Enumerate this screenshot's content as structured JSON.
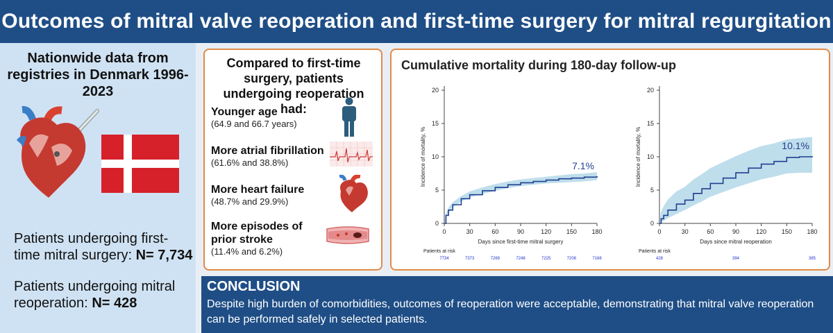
{
  "title": "Outcomes of mitral valve reoperation and first-time surgery for mitral regurgitation",
  "left": {
    "nationwide": "Nationwide data from registries in Denmark 1996-2023",
    "first_time_label": "Patients undergoing first-time mitral surgery:",
    "first_time_n": "N= 7,734",
    "reop_label": "Patients undergoing mitral reoperation:",
    "reop_n": "N= 428"
  },
  "comparison": {
    "title": "Compared to first-time surgery, patients undergoing reoperation had:",
    "items": [
      {
        "heading": "Younger age",
        "detail": "(64.9 and 66.7 years)",
        "icon": "person-icon"
      },
      {
        "heading": "More atrial fibrillation",
        "detail": "(61.6% and 38.8%)",
        "icon": "ecg-icon"
      },
      {
        "heading": "More heart failure",
        "detail": "(48.7% and 29.9%)",
        "icon": "heart-icon"
      },
      {
        "heading": "More episodes of prior stroke",
        "detail": "(11.4% and 6.2%)",
        "icon": "blood-vessel-icon"
      }
    ]
  },
  "chart_title": "Cumulative mortality during 180-day follow-up",
  "chart_data": [
    {
      "type": "line",
      "ylabel": "Incidence of mortality, %",
      "xlabel": "Days since first-time mitral surgery",
      "xlim": [
        0,
        180
      ],
      "ylim": [
        0,
        20
      ],
      "xticks": [
        0,
        30,
        60,
        90,
        120,
        150,
        180
      ],
      "yticks": [
        0,
        5,
        10,
        15,
        20
      ],
      "end_label": "7.1%",
      "x": [
        0,
        2,
        5,
        10,
        20,
        30,
        45,
        60,
        75,
        90,
        105,
        120,
        135,
        150,
        165,
        180
      ],
      "y": [
        0,
        1.2,
        2.0,
        2.8,
        3.7,
        4.3,
        4.9,
        5.4,
        5.8,
        6.1,
        6.3,
        6.5,
        6.7,
        6.8,
        6.95,
        7.1
      ],
      "ci_lower": [
        0,
        0.9,
        1.7,
        2.4,
        3.3,
        3.9,
        4.4,
        4.9,
        5.3,
        5.6,
        5.8,
        6.0,
        6.1,
        6.2,
        6.3,
        6.5
      ],
      "ci_upper": [
        0,
        1.5,
        2.4,
        3.2,
        4.1,
        4.8,
        5.4,
        5.9,
        6.3,
        6.6,
        6.8,
        7.0,
        7.2,
        7.4,
        7.5,
        7.7
      ],
      "at_risk_label": "Patients at risk",
      "at_risk_x": [
        0,
        30,
        60,
        90,
        120,
        150,
        180
      ],
      "at_risk": [
        "7734",
        "7373",
        "7269",
        "7248",
        "7225",
        "7208",
        "7168"
      ],
      "color": "#1f3f8f",
      "band_color": "#a9d3e6"
    },
    {
      "type": "line",
      "ylabel": "Incidence of mortality, %",
      "xlabel": "Days since mitral reoperation",
      "xlim": [
        0,
        180
      ],
      "ylim": [
        0,
        20
      ],
      "xticks": [
        0,
        30,
        60,
        90,
        120,
        150,
        180
      ],
      "yticks": [
        0,
        5,
        10,
        15,
        20
      ],
      "end_label": "10.1%",
      "x": [
        0,
        2,
        5,
        10,
        20,
        30,
        40,
        50,
        60,
        75,
        90,
        105,
        120,
        135,
        150,
        165,
        180
      ],
      "y": [
        0,
        0.7,
        1.2,
        2.0,
        2.9,
        3.5,
        4.5,
        5.2,
        6.0,
        6.8,
        7.6,
        8.3,
        8.9,
        9.3,
        9.9,
        10.0,
        10.1
      ],
      "ci_lower": [
        0,
        0.2,
        0.4,
        0.8,
        1.4,
        2.0,
        2.7,
        3.3,
        4.0,
        4.7,
        5.4,
        6.0,
        6.6,
        7.0,
        7.5,
        7.6,
        7.6
      ],
      "ci_upper": [
        0,
        1.8,
        2.6,
        3.6,
        4.8,
        5.5,
        6.6,
        7.4,
        8.3,
        9.2,
        10.1,
        10.9,
        11.6,
        12.0,
        12.6,
        12.8,
        13.0
      ],
      "at_risk_label": "Patients at risk",
      "at_risk_x": [
        0,
        90,
        180
      ],
      "at_risk": [
        "428",
        "394",
        "385"
      ],
      "color": "#1f3f8f",
      "band_color": "#a9d3e6"
    }
  ],
  "conclusion": {
    "heading": "CONCLUSION",
    "text": "Despite high burden of comorbidities, outcomes of reoperation were acceptable, demonstrating that mitral valve reoperation can be performed safely in selected patients."
  },
  "colors": {
    "header_bg": "#1f4e86",
    "left_bg": "#cfe2f3",
    "panel_border": "#e08a4a",
    "flag_red": "#d6202a"
  }
}
